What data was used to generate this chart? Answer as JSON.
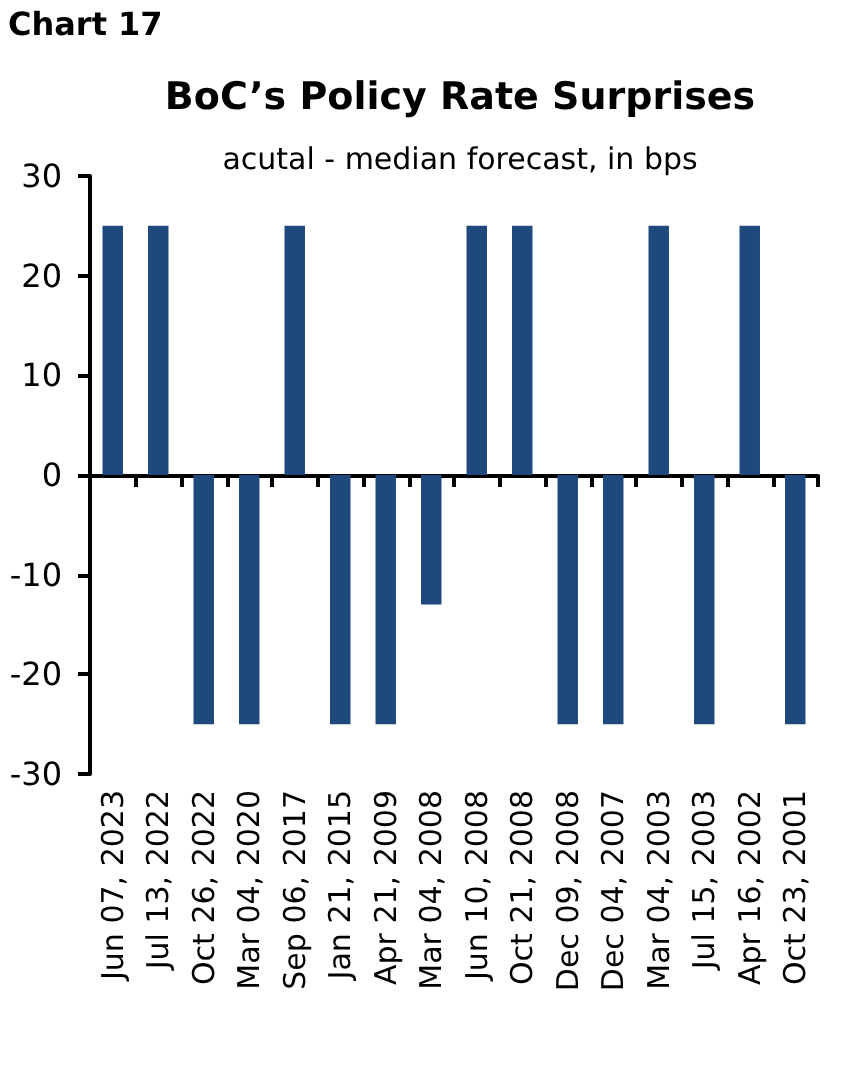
{
  "chart_data": {
    "type": "bar",
    "title": "BoC’s Policy Rate Surprises",
    "subtitle": "acutal - median forecast, in bps",
    "annotations": [
      "Chart 17"
    ],
    "categories": [
      "Jun 07, 2023",
      "Jul 13, 2022",
      "Oct 26, 2022",
      "Mar 04, 2020",
      "Sep 06, 2017",
      "Jan 21, 2015",
      "Apr 21, 2009",
      "Mar 04, 2008",
      "Jun 10, 2008",
      "Oct 21, 2008",
      "Dec 09, 2008",
      "Dec 04, 2007",
      "Mar 04, 2003",
      "Jul 15, 2003",
      "Apr 16, 2002",
      "Oct 23, 2001"
    ],
    "values": [
      25,
      25,
      -25,
      -25,
      25,
      -25,
      -25,
      -13,
      25,
      25,
      -25,
      -25,
      25,
      -25,
      25,
      -25
    ],
    "color": "#1f497d",
    "ylim": [
      -30,
      30
    ],
    "yticks": [
      -30,
      -20,
      -10,
      0,
      10,
      20,
      30
    ]
  }
}
